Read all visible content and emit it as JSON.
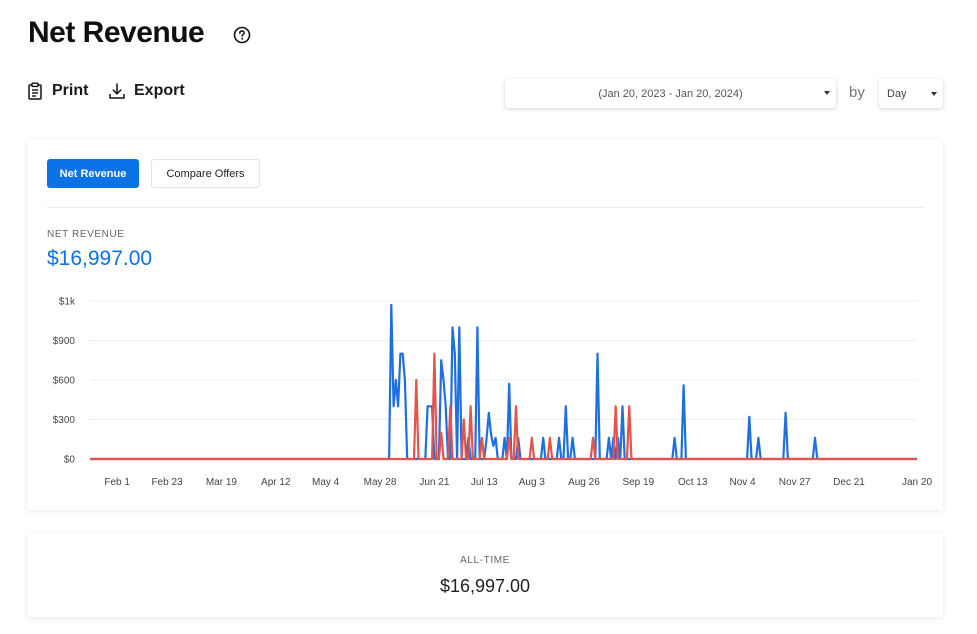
{
  "header": {
    "title": "Net Revenue",
    "help_icon": "question-circle-icon"
  },
  "toolbar": {
    "print_label": "Print",
    "print_icon": "clipboard-icon",
    "export_label": "Export",
    "export_icon": "download-icon",
    "date_range": "(Jan 20, 2023 - Jan 20, 2024)",
    "by_label": "by",
    "interval": "Day"
  },
  "tabs": {
    "net_revenue": "Net Revenue",
    "compare_offers": "Compare Offers"
  },
  "metric": {
    "label": "NET REVENUE",
    "value": "$16,997.00"
  },
  "alltime": {
    "label": "ALL-TIME",
    "value": "$16,997.00"
  },
  "colors": {
    "accent": "#0b72e7",
    "series_blue": "#1f6fe0",
    "series_red": "#e5534b"
  },
  "chart_data": {
    "type": "line",
    "y_ticks": [
      {
        "label": "$0",
        "value": 0
      },
      {
        "label": "$300",
        "value": 300
      },
      {
        "label": "$600",
        "value": 600
      },
      {
        "label": "$900",
        "value": 900
      },
      {
        "label": "$1k",
        "value": 1200
      }
    ],
    "ylim": [
      0,
      1200
    ],
    "xlim": [
      "2023-01-20",
      "2024-01-20"
    ],
    "x_ticks": [
      {
        "label": "Feb 1",
        "date": "2023-02-01"
      },
      {
        "label": "Feb 23",
        "date": "2023-02-23"
      },
      {
        "label": "Mar 19",
        "date": "2023-03-19"
      },
      {
        "label": "Apr 12",
        "date": "2023-04-12"
      },
      {
        "label": "May 4",
        "date": "2023-05-04"
      },
      {
        "label": "May 28",
        "date": "2023-05-28"
      },
      {
        "label": "Jun 21",
        "date": "2023-06-21"
      },
      {
        "label": "Jul 13",
        "date": "2023-07-13"
      },
      {
        "label": "Aug 3",
        "date": "2023-08-03"
      },
      {
        "label": "Aug 26",
        "date": "2023-08-26"
      },
      {
        "label": "Sep 19",
        "date": "2023-09-19"
      },
      {
        "label": "Oct 13",
        "date": "2023-10-13"
      },
      {
        "label": "Nov 4",
        "date": "2023-11-04"
      },
      {
        "label": "Nov 27",
        "date": "2023-11-27"
      },
      {
        "label": "Dec 21",
        "date": "2023-12-21"
      },
      {
        "label": "Jan 20",
        "date": "2024-01-20"
      }
    ],
    "grid": true,
    "series": [
      {
        "color": "blue",
        "points": [
          [
            "2023-06-02",
            1170
          ],
          [
            "2023-06-03",
            400
          ],
          [
            "2023-06-04",
            600
          ],
          [
            "2023-06-05",
            400
          ],
          [
            "2023-06-06",
            800
          ],
          [
            "2023-06-07",
            800
          ],
          [
            "2023-06-08",
            600
          ],
          [
            "2023-06-18",
            400
          ],
          [
            "2023-06-19",
            400
          ],
          [
            "2023-06-20",
            400
          ],
          [
            "2023-06-23",
            0
          ],
          [
            "2023-06-24",
            750
          ],
          [
            "2023-06-25",
            600
          ],
          [
            "2023-06-26",
            400
          ],
          [
            "2023-06-29",
            1000
          ],
          [
            "2023-06-30",
            800
          ],
          [
            "2023-07-02",
            1000
          ],
          [
            "2023-07-06",
            160
          ],
          [
            "2023-07-09",
            0
          ],
          [
            "2023-07-10",
            1000
          ],
          [
            "2023-07-14",
            150
          ],
          [
            "2023-07-15",
            350
          ],
          [
            "2023-07-16",
            190
          ],
          [
            "2023-07-17",
            100
          ],
          [
            "2023-07-18",
            160
          ],
          [
            "2023-07-22",
            160
          ],
          [
            "2023-07-24",
            570
          ],
          [
            "2023-07-26",
            0
          ],
          [
            "2023-07-28",
            160
          ],
          [
            "2023-07-31",
            0
          ],
          [
            "2023-08-08",
            160
          ],
          [
            "2023-08-15",
            160
          ],
          [
            "2023-08-18",
            400
          ],
          [
            "2023-08-21",
            160
          ],
          [
            "2023-09-01",
            800
          ],
          [
            "2023-09-06",
            160
          ],
          [
            "2023-09-08",
            160
          ],
          [
            "2023-09-10",
            160
          ],
          [
            "2023-09-12",
            400
          ],
          [
            "2023-10-05",
            160
          ],
          [
            "2023-10-09",
            560
          ],
          [
            "2023-11-07",
            320
          ],
          [
            "2023-11-11",
            160
          ],
          [
            "2023-11-23",
            350
          ],
          [
            "2023-12-06",
            160
          ]
        ]
      },
      {
        "color": "red",
        "points": [
          [
            "2023-06-13",
            600
          ],
          [
            "2023-06-21",
            800
          ],
          [
            "2023-06-24",
            200
          ],
          [
            "2023-06-28",
            400
          ],
          [
            "2023-07-04",
            300
          ],
          [
            "2023-07-07",
            400
          ],
          [
            "2023-07-12",
            160
          ],
          [
            "2023-07-24",
            160
          ],
          [
            "2023-07-27",
            400
          ],
          [
            "2023-08-03",
            160
          ],
          [
            "2023-08-11",
            160
          ],
          [
            "2023-08-30",
            160
          ],
          [
            "2023-09-09",
            400
          ],
          [
            "2023-09-15",
            400
          ]
        ]
      }
    ]
  }
}
